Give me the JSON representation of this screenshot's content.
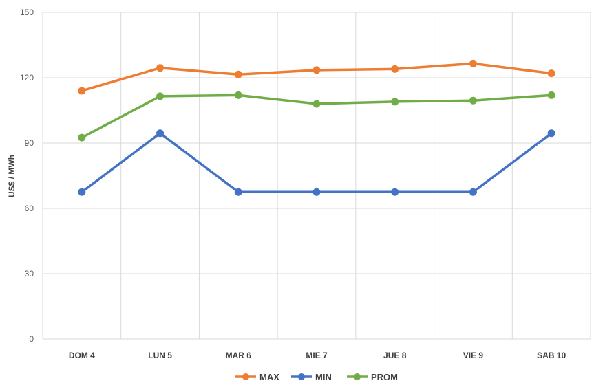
{
  "chart_data": {
    "type": "line",
    "categories": [
      "DOM 4",
      "LUN 5",
      "MAR 6",
      "MIE 7",
      "JUE 8",
      "VIE 9",
      "SAB 10"
    ],
    "series": [
      {
        "name": "MAX",
        "color": "#ED7D31",
        "values": [
          114,
          124.5,
          121.5,
          123.5,
          124,
          126.5,
          122
        ]
      },
      {
        "name": "MIN",
        "color": "#4472C4",
        "values": [
          67.5,
          94.5,
          67.5,
          67.5,
          67.5,
          67.5,
          94.5
        ]
      },
      {
        "name": "PROM",
        "color": "#70AD47",
        "values": [
          92.5,
          111.5,
          112,
          108,
          109,
          109.5,
          112
        ]
      }
    ],
    "title": "",
    "xlabel": "",
    "ylabel": "US$ / MWh",
    "ylim": [
      0,
      150
    ],
    "yticks": [
      0,
      30,
      60,
      90,
      120,
      150
    ],
    "grid": true,
    "legend": "bottom"
  }
}
